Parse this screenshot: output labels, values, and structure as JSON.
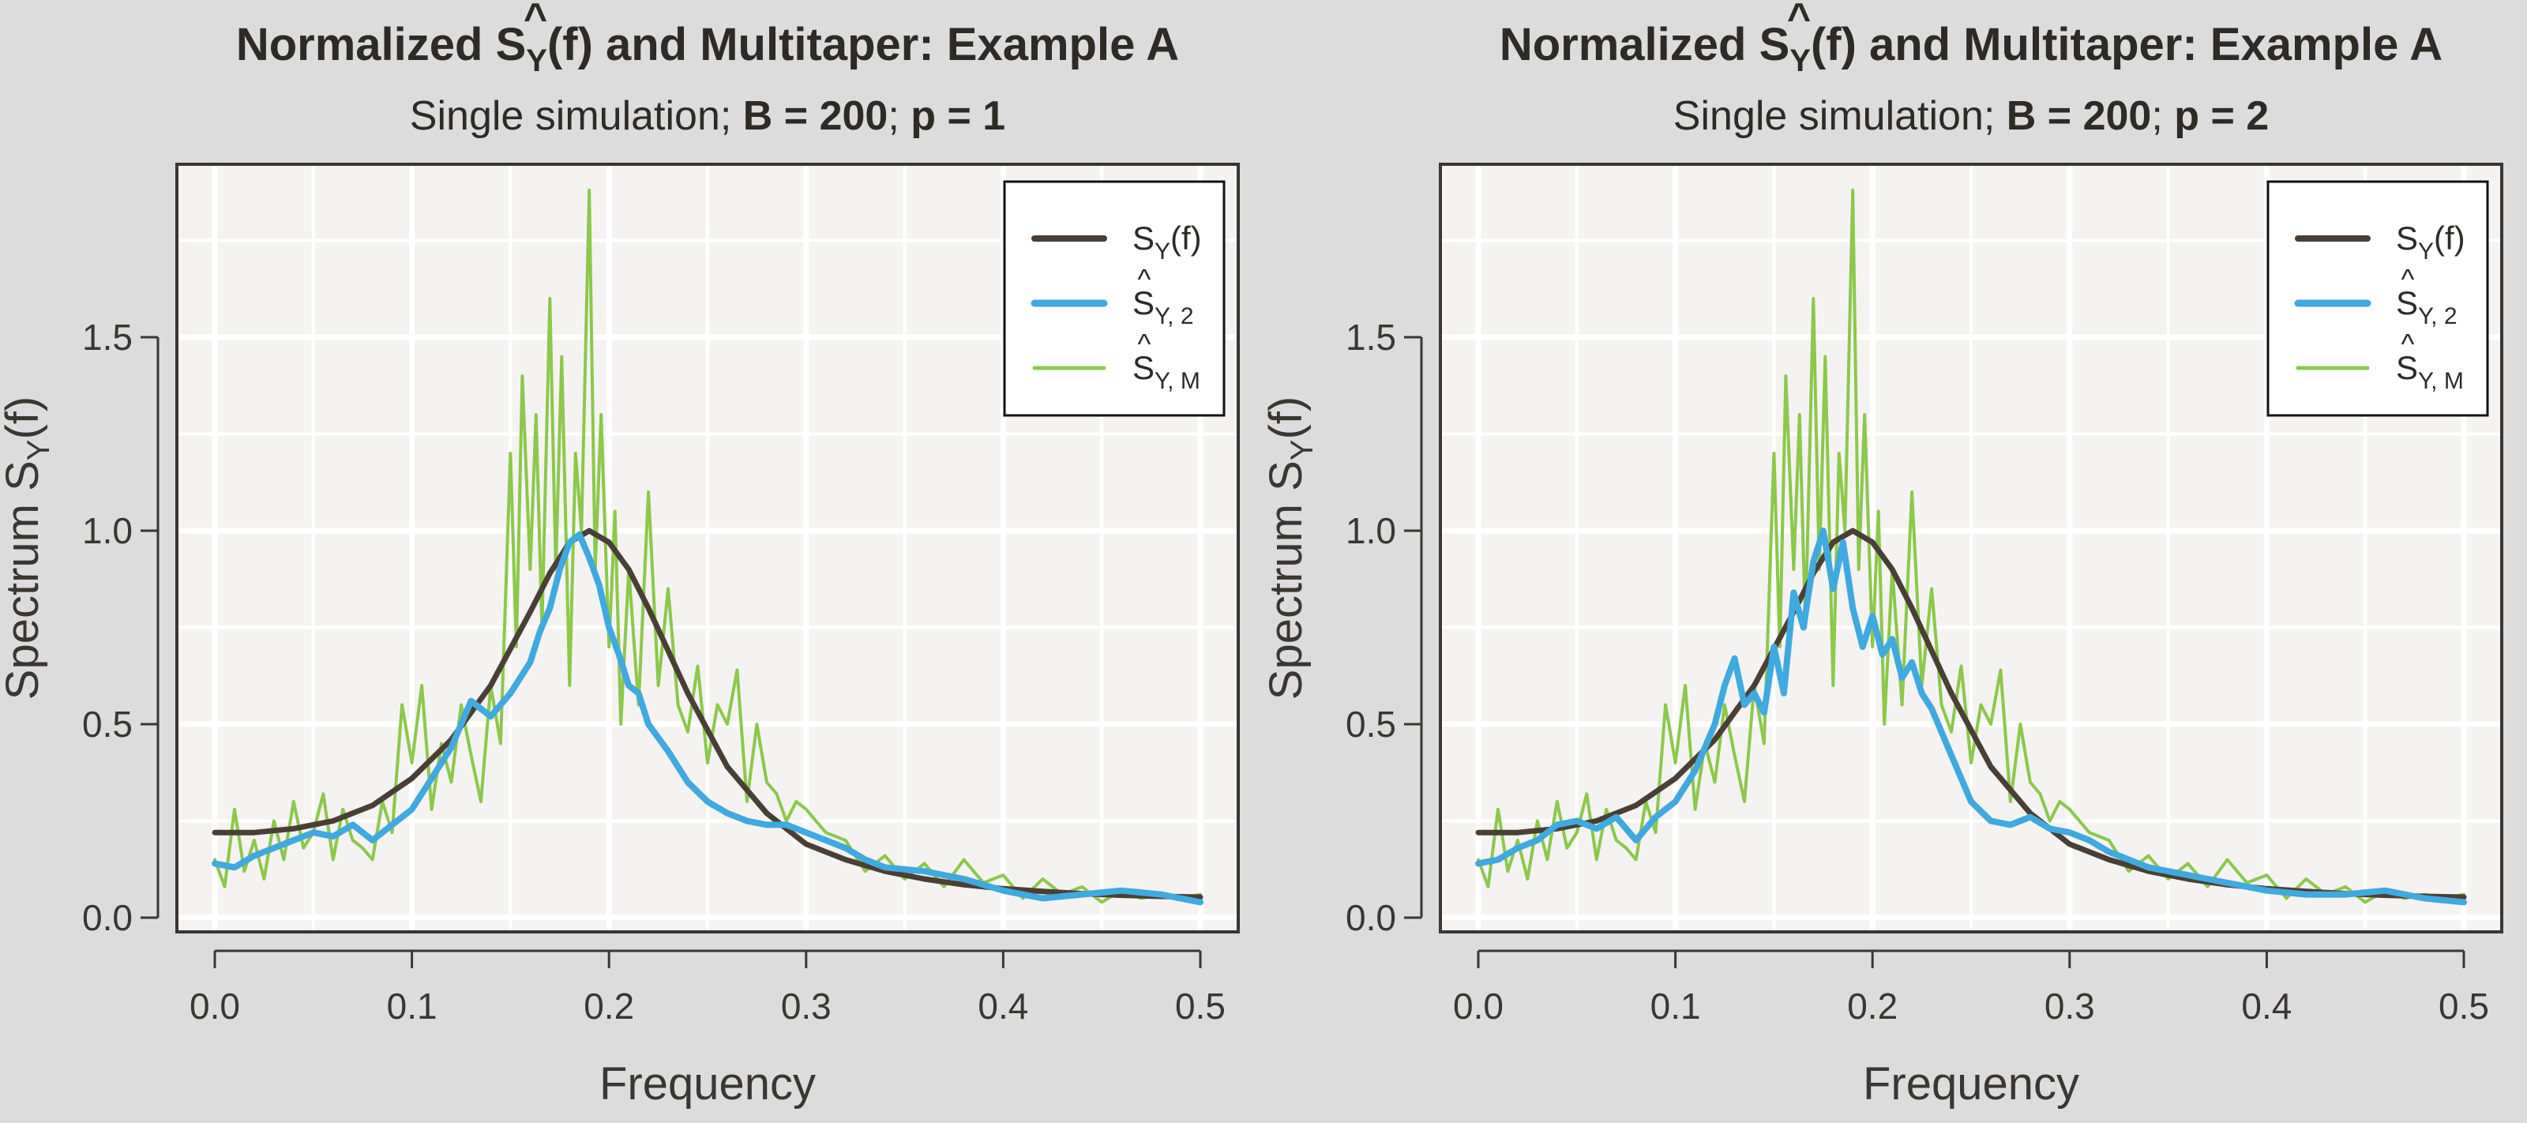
{
  "colors": {
    "background": "#dcdcdc",
    "plot_background": "#f4f3f2",
    "grid": "#ffffff",
    "axis": "#3a3631",
    "true_spectrum": "#4a3f35",
    "sdf_estimate": "#3fa9e0",
    "multitaper": "#8cc84b"
  },
  "chart_data": [
    {
      "type": "line",
      "title": {
        "prefix": "Normalized ",
        "hat": "^",
        "s": "S",
        "sub": "Y",
        "suffix": "(f) and Multitaper: Example A"
      },
      "subtitle": {
        "a": "Single simulation; ",
        "b_bold": "B = 200",
        "c": "; ",
        "d_bold": "p = 1"
      },
      "xlabel": "Frequency",
      "ylabel": {
        "main": "Spectrum S",
        "sub": "Y",
        "end": "(f)"
      },
      "xlim": [
        0,
        0.5
      ],
      "ylim": [
        0,
        1.9
      ],
      "xticks": [
        "0.0",
        "0.1",
        "0.2",
        "0.3",
        "0.4",
        "0.5"
      ],
      "yticks": [
        "0.0",
        "0.5",
        "1.0",
        "1.5"
      ],
      "grid": true,
      "legend_position": "top-right",
      "legend": [
        {
          "hat": "",
          "main": "S",
          "sub": "Y",
          "tail": "(f)"
        },
        {
          "hat": "^",
          "main": "S",
          "sub": "Y, 2",
          "tail": ""
        },
        {
          "hat": "^",
          "main": "S",
          "sub": "Y, M",
          "tail": ""
        }
      ],
      "series": [
        {
          "name": "S_Y(f)",
          "x": [
            0,
            0.02,
            0.04,
            0.06,
            0.08,
            0.1,
            0.12,
            0.14,
            0.16,
            0.17,
            0.18,
            0.19,
            0.2,
            0.21,
            0.22,
            0.24,
            0.26,
            0.28,
            0.3,
            0.32,
            0.34,
            0.36,
            0.38,
            0.4,
            0.42,
            0.44,
            0.46,
            0.48,
            0.5
          ],
          "values": [
            0.22,
            0.22,
            0.23,
            0.25,
            0.29,
            0.36,
            0.46,
            0.6,
            0.79,
            0.89,
            0.97,
            1.0,
            0.97,
            0.9,
            0.8,
            0.58,
            0.39,
            0.27,
            0.19,
            0.15,
            0.12,
            0.1,
            0.085,
            0.075,
            0.068,
            0.062,
            0.058,
            0.055,
            0.053
          ]
        },
        {
          "name": "Ŝ_{Y,2}",
          "x": [
            0,
            0.01,
            0.02,
            0.03,
            0.04,
            0.05,
            0.06,
            0.07,
            0.08,
            0.09,
            0.1,
            0.11,
            0.12,
            0.13,
            0.14,
            0.15,
            0.16,
            0.165,
            0.17,
            0.175,
            0.18,
            0.185,
            0.19,
            0.195,
            0.2,
            0.205,
            0.21,
            0.215,
            0.22,
            0.23,
            0.24,
            0.25,
            0.26,
            0.27,
            0.28,
            0.29,
            0.3,
            0.31,
            0.32,
            0.33,
            0.34,
            0.36,
            0.38,
            0.4,
            0.42,
            0.44,
            0.46,
            0.48,
            0.5
          ],
          "values": [
            0.14,
            0.13,
            0.16,
            0.18,
            0.2,
            0.22,
            0.21,
            0.24,
            0.2,
            0.24,
            0.28,
            0.36,
            0.44,
            0.56,
            0.52,
            0.58,
            0.66,
            0.74,
            0.8,
            0.9,
            0.97,
            0.99,
            0.93,
            0.86,
            0.75,
            0.68,
            0.6,
            0.58,
            0.5,
            0.43,
            0.35,
            0.3,
            0.27,
            0.25,
            0.24,
            0.24,
            0.22,
            0.2,
            0.18,
            0.15,
            0.13,
            0.12,
            0.1,
            0.07,
            0.05,
            0.06,
            0.07,
            0.06,
            0.04
          ]
        },
        {
          "name": "Ŝ_{Y,M}",
          "x": [
            0,
            0.005,
            0.01,
            0.015,
            0.02,
            0.025,
            0.03,
            0.035,
            0.04,
            0.045,
            0.05,
            0.055,
            0.06,
            0.065,
            0.07,
            0.075,
            0.08,
            0.085,
            0.09,
            0.095,
            0.1,
            0.105,
            0.11,
            0.115,
            0.12,
            0.125,
            0.13,
            0.135,
            0.14,
            0.145,
            0.15,
            0.153,
            0.156,
            0.16,
            0.163,
            0.166,
            0.17,
            0.173,
            0.176,
            0.18,
            0.183,
            0.186,
            0.19,
            0.193,
            0.196,
            0.2,
            0.203,
            0.206,
            0.21,
            0.215,
            0.22,
            0.225,
            0.23,
            0.235,
            0.24,
            0.245,
            0.25,
            0.255,
            0.26,
            0.265,
            0.27,
            0.275,
            0.28,
            0.285,
            0.29,
            0.295,
            0.3,
            0.31,
            0.32,
            0.33,
            0.34,
            0.35,
            0.36,
            0.37,
            0.38,
            0.39,
            0.4,
            0.41,
            0.42,
            0.43,
            0.44,
            0.45,
            0.46,
            0.47,
            0.48,
            0.49,
            0.5
          ],
          "values": [
            0.15,
            0.08,
            0.28,
            0.12,
            0.2,
            0.1,
            0.25,
            0.15,
            0.3,
            0.18,
            0.22,
            0.32,
            0.15,
            0.28,
            0.2,
            0.18,
            0.15,
            0.3,
            0.22,
            0.55,
            0.4,
            0.6,
            0.28,
            0.45,
            0.35,
            0.55,
            0.42,
            0.3,
            0.6,
            0.45,
            1.2,
            0.7,
            1.4,
            0.9,
            1.3,
            0.75,
            1.6,
            0.9,
            1.45,
            0.6,
            1.2,
            1.0,
            1.88,
            0.9,
            1.3,
            0.7,
            1.05,
            0.5,
            0.9,
            0.55,
            1.1,
            0.6,
            0.85,
            0.55,
            0.48,
            0.65,
            0.4,
            0.55,
            0.5,
            0.64,
            0.3,
            0.5,
            0.35,
            0.32,
            0.25,
            0.3,
            0.28,
            0.22,
            0.2,
            0.12,
            0.16,
            0.1,
            0.14,
            0.08,
            0.15,
            0.09,
            0.11,
            0.05,
            0.1,
            0.06,
            0.08,
            0.04,
            0.07,
            0.05,
            0.06,
            0.05,
            0.06
          ]
        }
      ]
    },
    {
      "type": "line",
      "title": {
        "prefix": "Normalized ",
        "hat": "^",
        "s": "S",
        "sub": "Y",
        "suffix": "(f) and Multitaper: Example A"
      },
      "subtitle": {
        "a": "Single simulation; ",
        "b_bold": "B = 200",
        "c": "; ",
        "d_bold": "p = 2"
      },
      "xlabel": "Frequency",
      "ylabel": {
        "main": "Spectrum S",
        "sub": "Y",
        "end": "(f)"
      },
      "xlim": [
        0,
        0.5
      ],
      "ylim": [
        0,
        1.9
      ],
      "xticks": [
        "0.0",
        "0.1",
        "0.2",
        "0.3",
        "0.4",
        "0.5"
      ],
      "yticks": [
        "0.0",
        "0.5",
        "1.0",
        "1.5"
      ],
      "grid": true,
      "legend_position": "top-right",
      "legend": [
        {
          "hat": "",
          "main": "S",
          "sub": "Y",
          "tail": "(f)"
        },
        {
          "hat": "^",
          "main": "S",
          "sub": "Y, 2",
          "tail": ""
        },
        {
          "hat": "^",
          "main": "S",
          "sub": "Y, M",
          "tail": ""
        }
      ],
      "series": [
        {
          "name": "S_Y(f)",
          "x": [
            0,
            0.02,
            0.04,
            0.06,
            0.08,
            0.1,
            0.12,
            0.14,
            0.16,
            0.17,
            0.18,
            0.19,
            0.2,
            0.21,
            0.22,
            0.24,
            0.26,
            0.28,
            0.3,
            0.32,
            0.34,
            0.36,
            0.38,
            0.4,
            0.42,
            0.44,
            0.46,
            0.48,
            0.5
          ],
          "values": [
            0.22,
            0.22,
            0.23,
            0.25,
            0.29,
            0.36,
            0.46,
            0.6,
            0.79,
            0.89,
            0.97,
            1.0,
            0.97,
            0.9,
            0.8,
            0.58,
            0.39,
            0.27,
            0.19,
            0.15,
            0.12,
            0.1,
            0.085,
            0.075,
            0.068,
            0.062,
            0.058,
            0.055,
            0.053
          ]
        },
        {
          "name": "Ŝ_{Y,2}",
          "x": [
            0,
            0.01,
            0.02,
            0.03,
            0.04,
            0.05,
            0.06,
            0.07,
            0.08,
            0.09,
            0.1,
            0.11,
            0.12,
            0.125,
            0.13,
            0.135,
            0.14,
            0.145,
            0.15,
            0.155,
            0.16,
            0.165,
            0.17,
            0.175,
            0.18,
            0.185,
            0.19,
            0.195,
            0.2,
            0.205,
            0.21,
            0.215,
            0.22,
            0.225,
            0.23,
            0.24,
            0.25,
            0.26,
            0.27,
            0.28,
            0.29,
            0.3,
            0.31,
            0.32,
            0.33,
            0.34,
            0.36,
            0.38,
            0.4,
            0.42,
            0.44,
            0.46,
            0.48,
            0.5
          ],
          "values": [
            0.14,
            0.15,
            0.18,
            0.2,
            0.24,
            0.25,
            0.23,
            0.26,
            0.2,
            0.26,
            0.3,
            0.38,
            0.5,
            0.6,
            0.67,
            0.55,
            0.58,
            0.53,
            0.7,
            0.58,
            0.84,
            0.75,
            0.92,
            1.0,
            0.85,
            0.97,
            0.8,
            0.7,
            0.78,
            0.68,
            0.72,
            0.62,
            0.66,
            0.58,
            0.54,
            0.42,
            0.3,
            0.25,
            0.24,
            0.26,
            0.23,
            0.22,
            0.2,
            0.17,
            0.15,
            0.13,
            0.11,
            0.09,
            0.07,
            0.06,
            0.06,
            0.07,
            0.05,
            0.04
          ]
        },
        {
          "name": "Ŝ_{Y,M}",
          "x": [
            0,
            0.005,
            0.01,
            0.015,
            0.02,
            0.025,
            0.03,
            0.035,
            0.04,
            0.045,
            0.05,
            0.055,
            0.06,
            0.065,
            0.07,
            0.075,
            0.08,
            0.085,
            0.09,
            0.095,
            0.1,
            0.105,
            0.11,
            0.115,
            0.12,
            0.125,
            0.13,
            0.135,
            0.14,
            0.145,
            0.15,
            0.153,
            0.156,
            0.16,
            0.163,
            0.166,
            0.17,
            0.173,
            0.176,
            0.18,
            0.183,
            0.186,
            0.19,
            0.193,
            0.196,
            0.2,
            0.203,
            0.206,
            0.21,
            0.215,
            0.22,
            0.225,
            0.23,
            0.235,
            0.24,
            0.245,
            0.25,
            0.255,
            0.26,
            0.265,
            0.27,
            0.275,
            0.28,
            0.285,
            0.29,
            0.295,
            0.3,
            0.31,
            0.32,
            0.33,
            0.34,
            0.35,
            0.36,
            0.37,
            0.38,
            0.39,
            0.4,
            0.41,
            0.42,
            0.43,
            0.44,
            0.45,
            0.46,
            0.47,
            0.48,
            0.49,
            0.5
          ],
          "values": [
            0.15,
            0.08,
            0.28,
            0.12,
            0.2,
            0.1,
            0.25,
            0.15,
            0.3,
            0.18,
            0.22,
            0.32,
            0.15,
            0.28,
            0.2,
            0.18,
            0.15,
            0.3,
            0.22,
            0.55,
            0.4,
            0.6,
            0.28,
            0.45,
            0.35,
            0.55,
            0.42,
            0.3,
            0.6,
            0.45,
            1.2,
            0.7,
            1.4,
            0.9,
            1.3,
            0.75,
            1.6,
            0.9,
            1.45,
            0.6,
            1.2,
            1.0,
            1.88,
            0.9,
            1.3,
            0.7,
            1.05,
            0.5,
            0.9,
            0.55,
            1.1,
            0.6,
            0.85,
            0.55,
            0.48,
            0.65,
            0.4,
            0.55,
            0.5,
            0.64,
            0.3,
            0.5,
            0.35,
            0.32,
            0.25,
            0.3,
            0.28,
            0.22,
            0.2,
            0.12,
            0.16,
            0.1,
            0.14,
            0.08,
            0.15,
            0.09,
            0.11,
            0.05,
            0.1,
            0.06,
            0.08,
            0.04,
            0.07,
            0.05,
            0.06,
            0.05,
            0.06
          ]
        }
      ]
    }
  ]
}
